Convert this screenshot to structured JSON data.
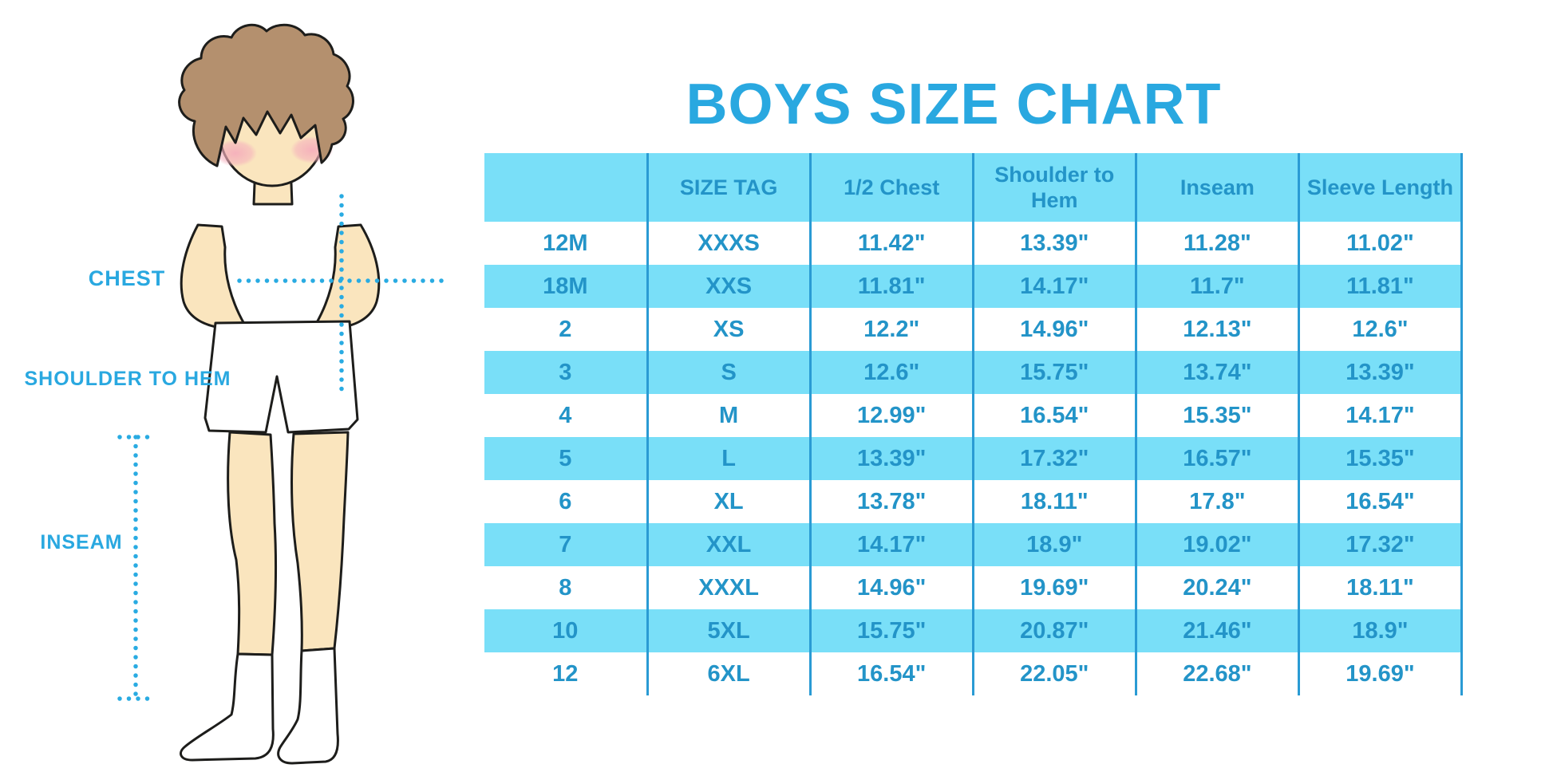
{
  "page": {
    "title": "BOYS SIZE CHART"
  },
  "figure": {
    "labels": {
      "chest": "CHEST",
      "shoulder_to_hem": "SHOULDER TO HEM",
      "inseam": "INSEAM"
    },
    "colors": {
      "skin": "#fae5be",
      "hair": "#b4906e",
      "blush": "#f5afbc",
      "outline": "#1d1d1b",
      "garment": "#ffffff",
      "dotted_line": "#29abe2"
    }
  },
  "chart_data": {
    "type": "table",
    "title": "BOYS SIZE CHART",
    "columns": [
      "",
      "SIZE TAG",
      "1/2 Chest",
      "Shoulder to Hem",
      "Inseam",
      "Sleeve Length"
    ],
    "rows": [
      [
        "12M",
        "XXXS",
        "11.42\"",
        "13.39\"",
        "11.28\"",
        "11.02\""
      ],
      [
        "18M",
        "XXS",
        "11.81\"",
        "14.17\"",
        "11.7\"",
        "11.81\""
      ],
      [
        "2",
        "XS",
        "12.2\"",
        "14.96\"",
        "12.13\"",
        "12.6\""
      ],
      [
        "3",
        "S",
        "12.6\"",
        "15.75\"",
        "13.74\"",
        "13.39\""
      ],
      [
        "4",
        "M",
        "12.99\"",
        "16.54\"",
        "15.35\"",
        "14.17\""
      ],
      [
        "5",
        "L",
        "13.39\"",
        "17.32\"",
        "16.57\"",
        "15.35\""
      ],
      [
        "6",
        "XL",
        "13.78\"",
        "18.11\"",
        "17.8\"",
        "16.54\""
      ],
      [
        "7",
        "XXL",
        "14.17\"",
        "18.9\"",
        "19.02\"",
        "17.32\""
      ],
      [
        "8",
        "XXXL",
        "14.96\"",
        "19.69\"",
        "20.24\"",
        "18.11\""
      ],
      [
        "10",
        "5XL",
        "15.75\"",
        "20.87\"",
        "21.46\"",
        "18.9\""
      ],
      [
        "12",
        "6XL",
        "16.54\"",
        "22.05\"",
        "22.68\"",
        "19.69\""
      ]
    ],
    "layout": {
      "striped": true,
      "stripe_color": "#79dff8",
      "header_color": "#79dff8",
      "grid_color": "#2a9bd4",
      "text_color": "#2394c8",
      "title_color": "#29a8e0",
      "legend": "none",
      "grid": "vertical-only"
    }
  }
}
